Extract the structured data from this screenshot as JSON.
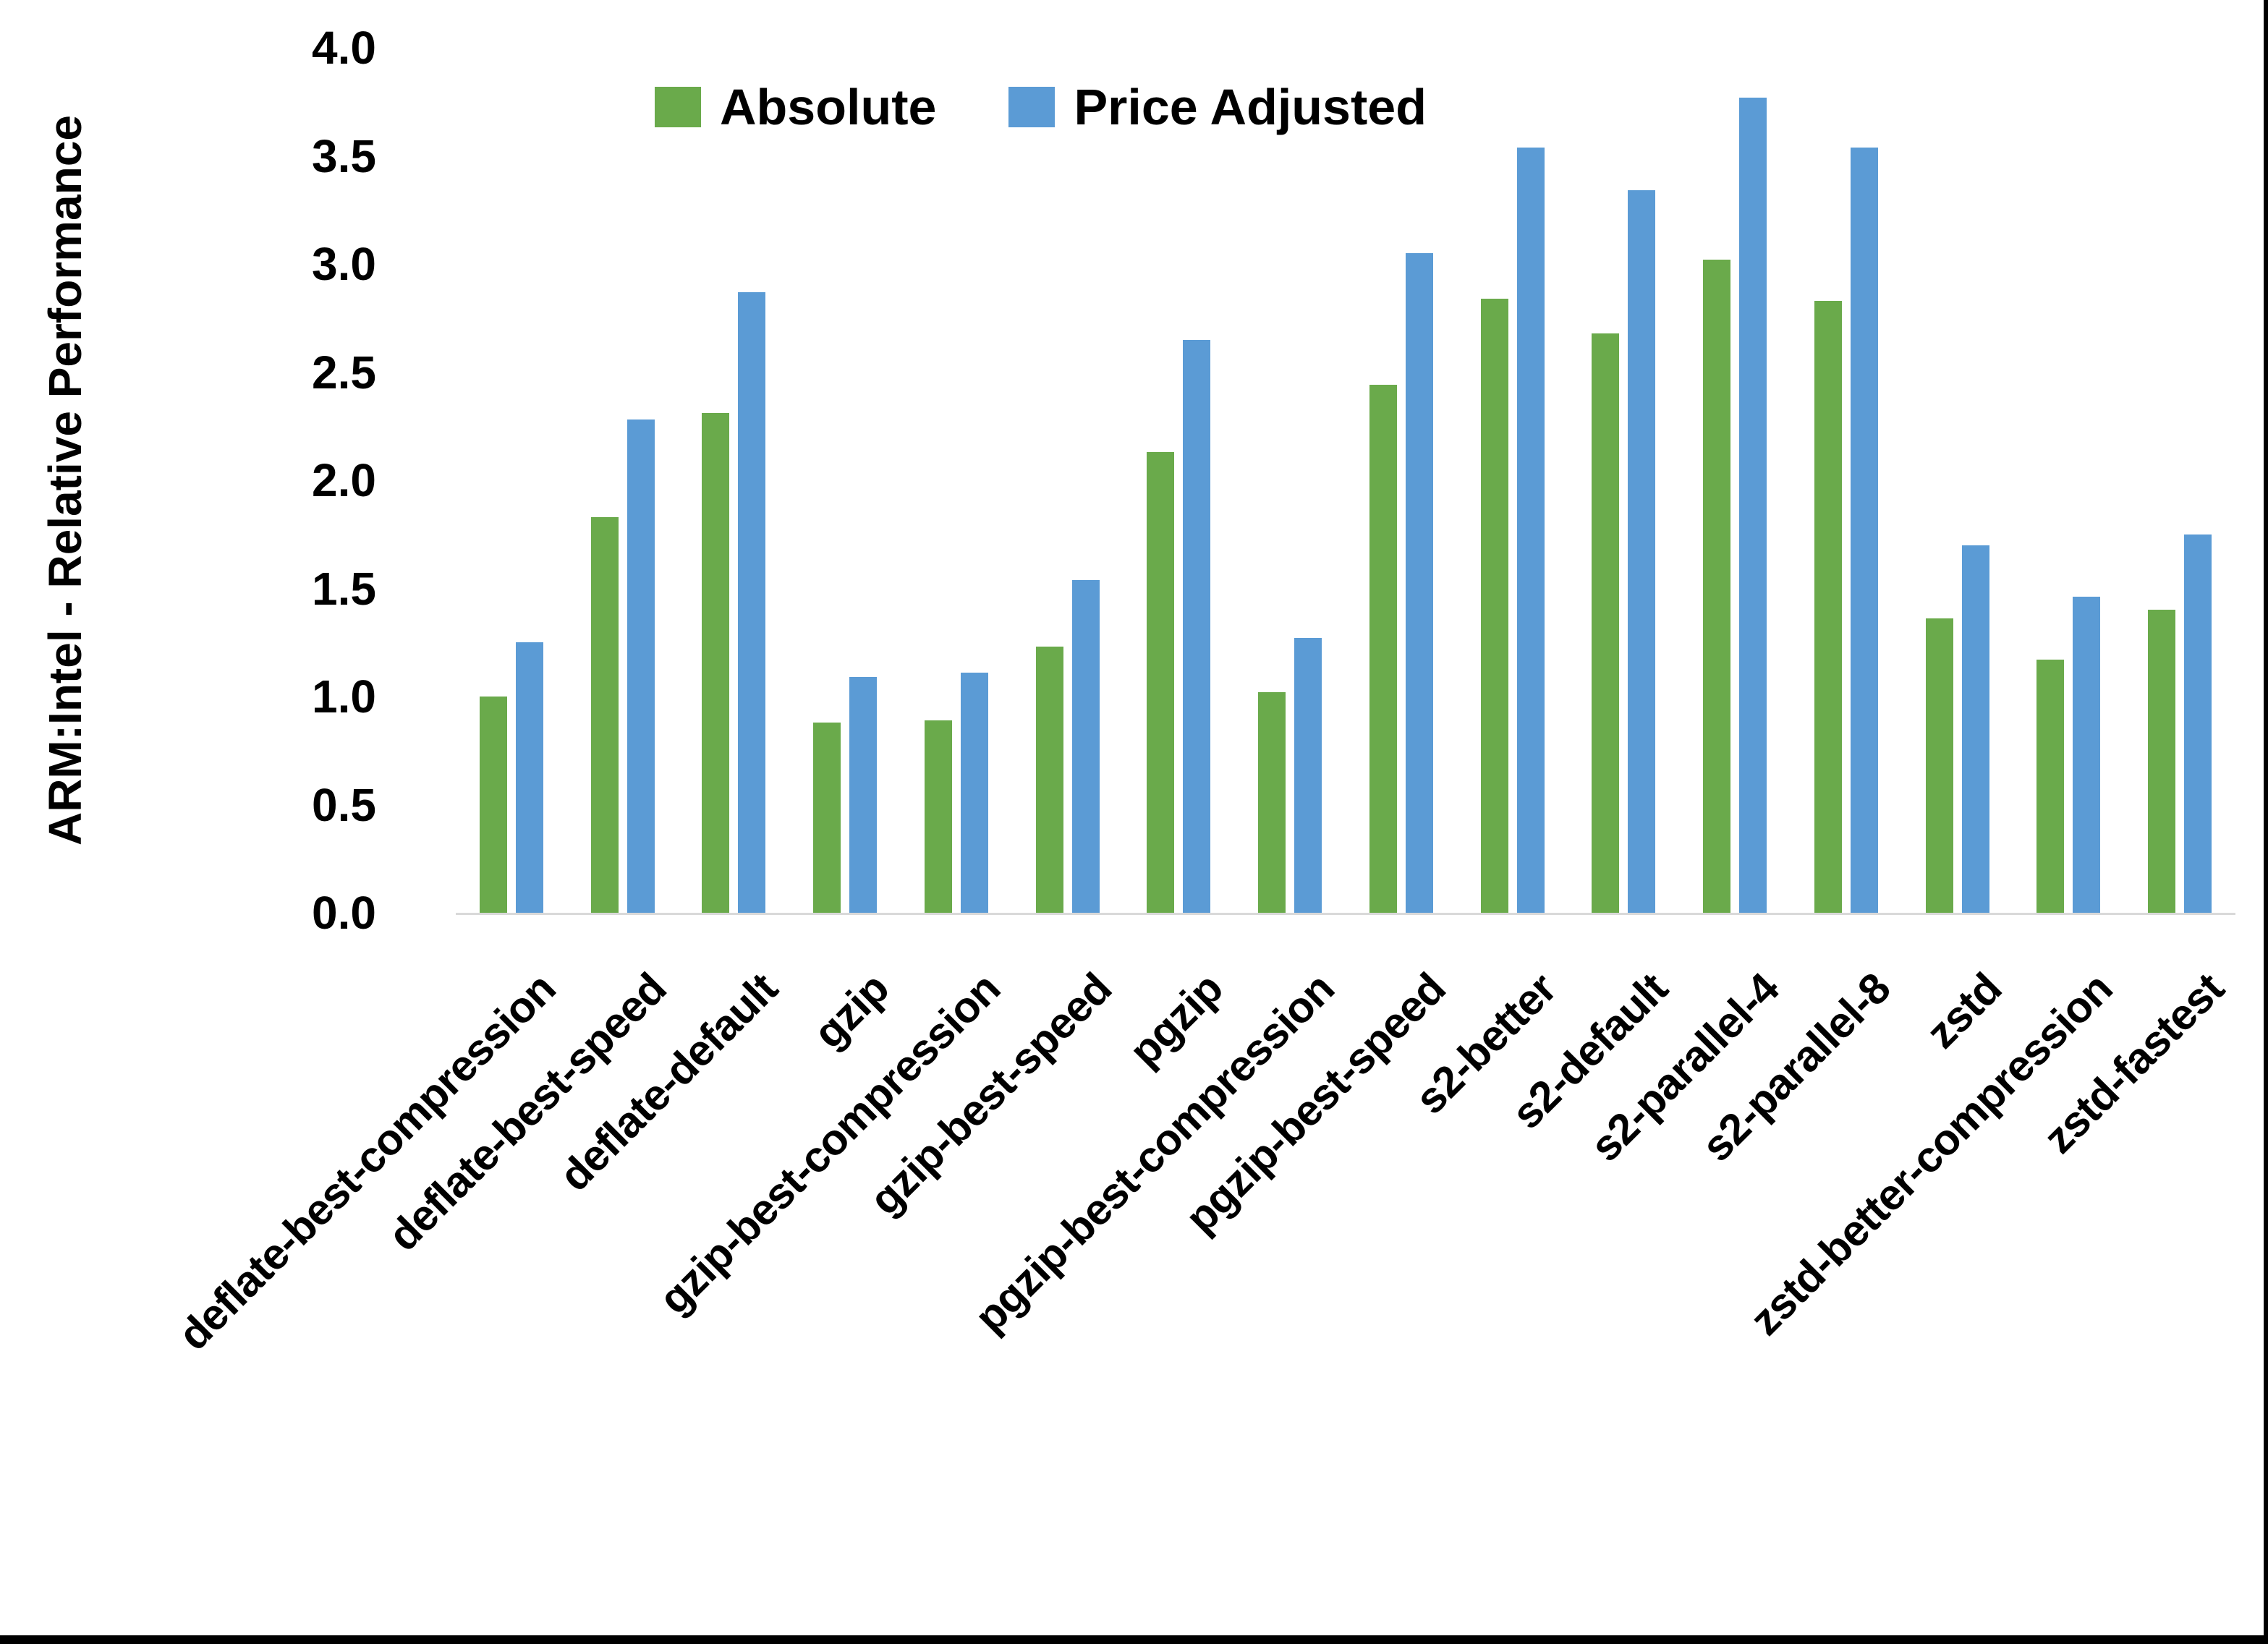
{
  "chart_data": {
    "type": "bar",
    "title": "",
    "xlabel": "",
    "ylabel": "ARM:Intel - Relative Performance",
    "ylim": [
      0.0,
      4.0
    ],
    "ytick_step": 0.5,
    "ytick_labels": [
      "0.0",
      "0.5",
      "1.0",
      "1.5",
      "2.0",
      "2.5",
      "3.0",
      "3.5",
      "4.0"
    ],
    "grid": false,
    "legend_position": "top-center",
    "categories": [
      "deflate-best-compression",
      "deflate-best-speed",
      "deflate-default",
      "gzip",
      "gzip-best-compression",
      "gzip-best-speed",
      "pgzip",
      "pgzip-best-compression",
      "pgzip-best-speed",
      "s2-better",
      "s2-default",
      "s2-parallel-4",
      "s2-parallel-8",
      "zstd",
      "zstd-better-compression",
      "zstd-fastest"
    ],
    "series": [
      {
        "name": "Absolute",
        "color": "#6aaa4b",
        "values": [
          1.0,
          1.83,
          2.31,
          0.88,
          0.89,
          1.23,
          2.13,
          1.02,
          2.44,
          2.84,
          2.68,
          3.02,
          2.83,
          1.36,
          1.17,
          1.4
        ]
      },
      {
        "name": "Price Adjusted",
        "color": "#5b9bd5",
        "values": [
          1.25,
          2.28,
          2.87,
          1.09,
          1.11,
          1.54,
          2.65,
          1.27,
          3.05,
          3.54,
          3.34,
          3.77,
          3.54,
          1.7,
          1.46,
          1.75
        ]
      }
    ]
  },
  "colors": {
    "axis_line": "#d9d9d9",
    "text": "#000000",
    "background": "#ffffff",
    "frame_border": "#000000"
  }
}
